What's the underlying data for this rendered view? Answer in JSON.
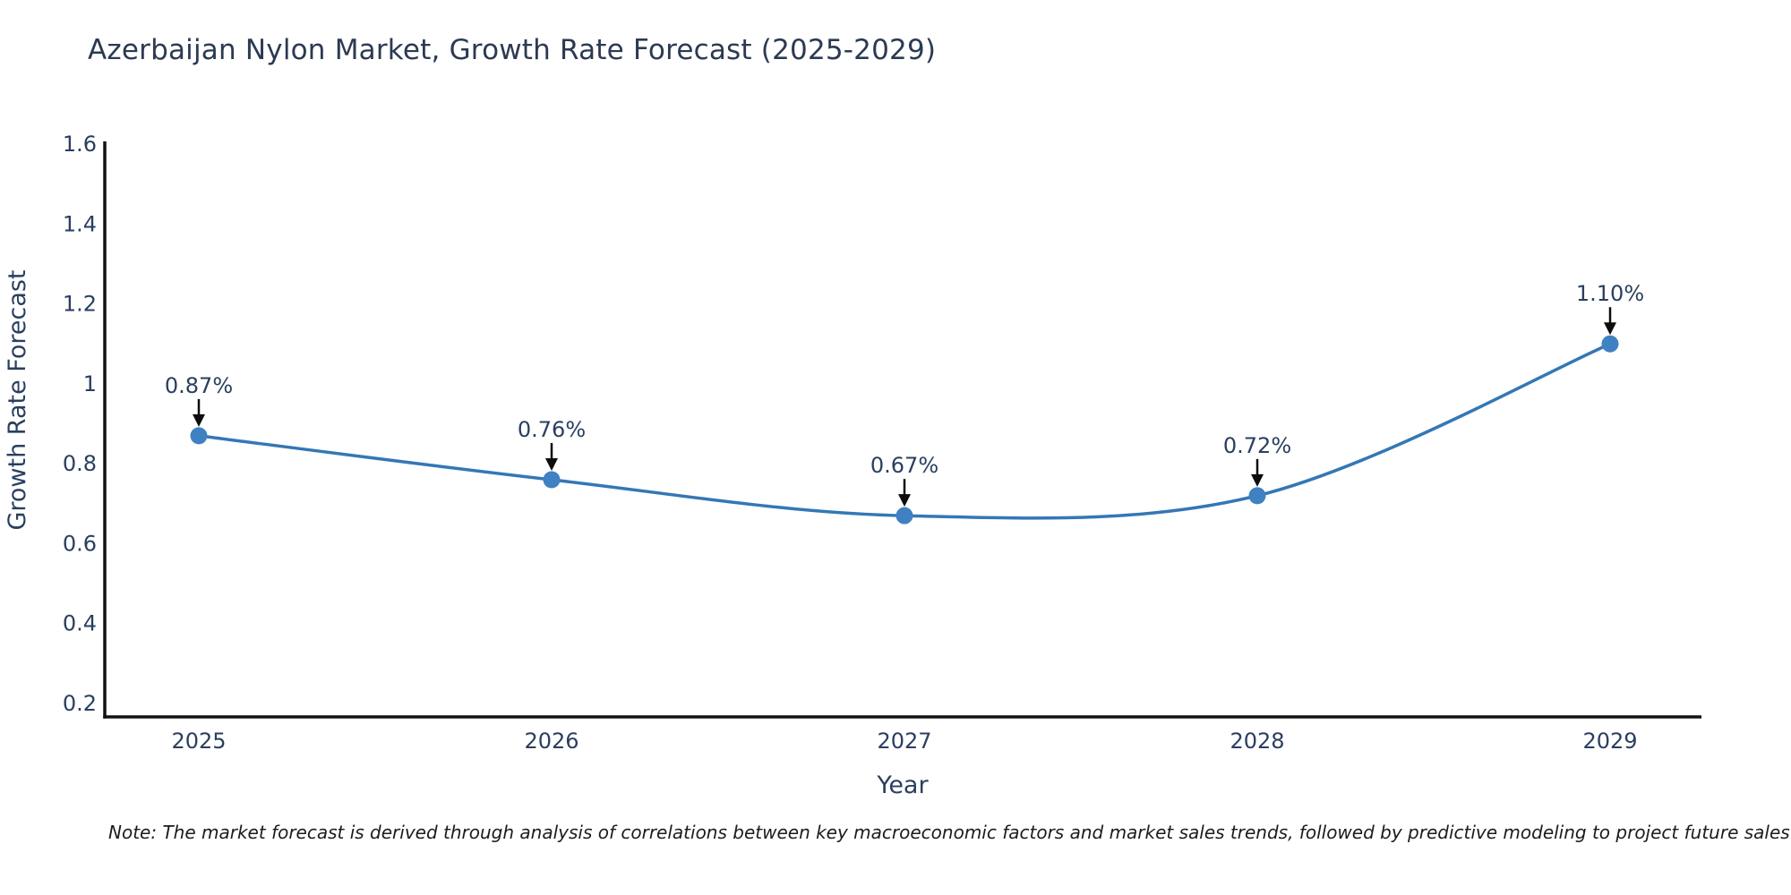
{
  "chart_data": {
    "type": "line",
    "title": "Azerbaijan Nylon Market, Growth Rate Forecast (2025-2029)",
    "xlabel": "Year",
    "ylabel": "Growth Rate Forecast",
    "categories": [
      "2025",
      "2026",
      "2027",
      "2028",
      "2029"
    ],
    "series": [
      {
        "name": "Growth Rate Forecast",
        "values": [
          0.87,
          0.76,
          0.67,
          0.72,
          1.1
        ]
      }
    ],
    "point_labels": [
      "0.87%",
      "0.76%",
      "0.67%",
      "0.72%",
      "1.10%"
    ],
    "ylim": [
      0.2,
      1.6
    ],
    "yticks": [
      0.2,
      0.4,
      0.6,
      0.8,
      1,
      1.2,
      1.4,
      1.6
    ],
    "ytick_labels": [
      "0.2",
      "0.4",
      "0.6",
      "0.8",
      "1",
      "1.2",
      "1.4",
      "1.6"
    ],
    "grid": false,
    "legend": "none",
    "line_shape": "spline",
    "colors": {
      "line": "#3477b6",
      "marker": "#3f81c2",
      "axis": "#111111",
      "text": "#2a3f5f",
      "arrow": "#0d0d0d",
      "background": "#ffffff"
    }
  },
  "note": {
    "text": "Note: The market forecast is derived through analysis of correlations between key macroeconomic factors and market sales trends, followed by predictive modeling to project future sales"
  }
}
